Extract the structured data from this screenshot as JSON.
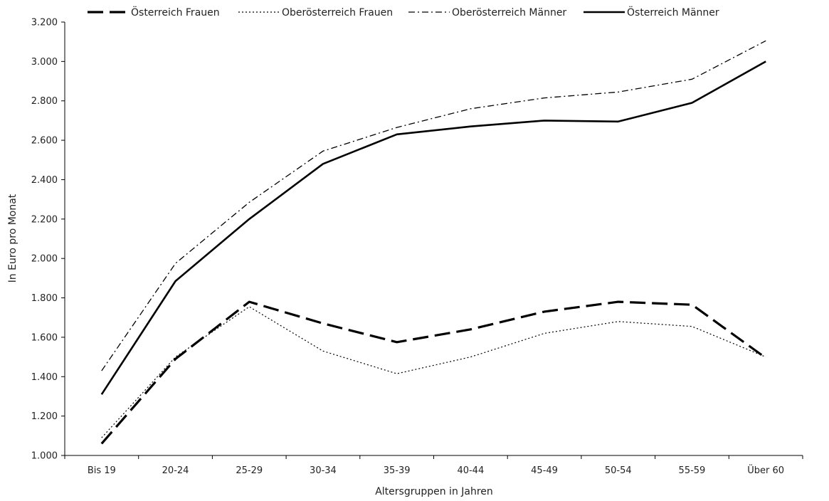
{
  "chart_data": {
    "type": "line",
    "title": "",
    "xlabel": "Altersgruppen in Jahren",
    "ylabel": "In Euro pro Monat",
    "ylim": [
      1000,
      3200
    ],
    "yticks": [
      1000,
      1200,
      1400,
      1600,
      1800,
      2000,
      2200,
      2400,
      2600,
      2800,
      3000,
      3200
    ],
    "ytick_labels": [
      "1.000",
      "1.200",
      "1.400",
      "1.600",
      "1.800",
      "2.000",
      "2.200",
      "2.400",
      "2.600",
      "2.800",
      "3.000",
      "3.200"
    ],
    "categories": [
      "Bis 19",
      "20-24",
      "25-29",
      "30-34",
      "35-39",
      "40-44",
      "45-49",
      "50-54",
      "55-59",
      "Über 60"
    ],
    "grid": false,
    "legend_position": "top",
    "series": [
      {
        "name": "Österreich Frauen",
        "style": "dashed-heavy",
        "color": "#000000",
        "values": [
          1060,
          1490,
          1780,
          1670,
          1575,
          1640,
          1730,
          1780,
          1765,
          1495
        ]
      },
      {
        "name": "Oberösterreich Frauen",
        "style": "dotted",
        "color": "#000000",
        "values": [
          1090,
          1500,
          1755,
          1530,
          1415,
          1500,
          1620,
          1680,
          1655,
          1500
        ]
      },
      {
        "name": "Oberösterreich Männer",
        "style": "dash-dot",
        "color": "#000000",
        "values": [
          1430,
          1975,
          2285,
          2545,
          2665,
          2760,
          2815,
          2845,
          2910,
          3105
        ]
      },
      {
        "name": "Österreich Männer",
        "style": "solid",
        "color": "#000000",
        "values": [
          1310,
          1885,
          2200,
          2480,
          2630,
          2670,
          2700,
          2695,
          2790,
          3000
        ]
      }
    ]
  }
}
